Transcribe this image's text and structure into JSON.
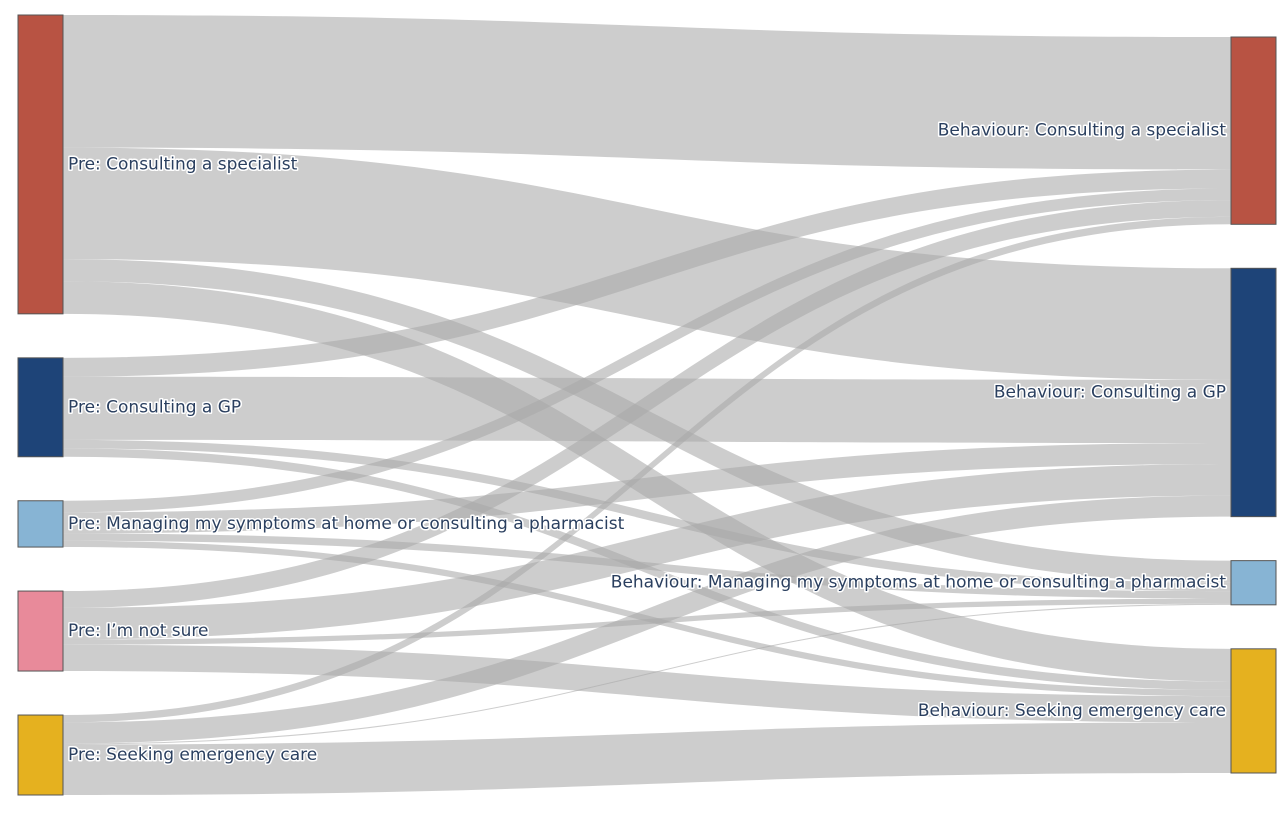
{
  "chart_data": {
    "type": "sankey",
    "sources": [
      {
        "id": "pre_specialist",
        "label": "Pre: Consulting a specialist",
        "color": "#b85343"
      },
      {
        "id": "pre_gp",
        "label": "Pre: Consulting a GP",
        "color": "#1e4478"
      },
      {
        "id": "pre_home",
        "label": "Pre: Managing my symptoms at home or consulting a pharmacist",
        "color": "#87b4d4"
      },
      {
        "id": "pre_unsure",
        "label": "Pre: I’m not sure",
        "color": "#e88a9a"
      },
      {
        "id": "pre_emergency",
        "label": "Pre: Seeking emergency care",
        "color": "#e5b11f"
      }
    ],
    "targets": [
      {
        "id": "beh_specialist",
        "label": "Behaviour: Consulting a specialist",
        "color": "#b85343"
      },
      {
        "id": "beh_gp",
        "label": "Behaviour: Consulting a GP",
        "color": "#1e4478"
      },
      {
        "id": "beh_home",
        "label": "Behaviour: Managing my symptoms at home or consulting a pharmacist",
        "color": "#87b4d4"
      },
      {
        "id": "beh_emergency",
        "label": "Behaviour: Seeking emergency care",
        "color": "#e5b11f"
      }
    ],
    "links": [
      {
        "source": "pre_specialist",
        "target": "beh_specialist",
        "value": 126
      },
      {
        "source": "pre_specialist",
        "target": "beh_gp",
        "value": 106
      },
      {
        "source": "pre_specialist",
        "target": "beh_home",
        "value": 21
      },
      {
        "source": "pre_specialist",
        "target": "beh_emergency",
        "value": 31
      },
      {
        "source": "pre_gp",
        "target": "beh_specialist",
        "value": 18
      },
      {
        "source": "pre_gp",
        "target": "beh_gp",
        "value": 60
      },
      {
        "source": "pre_gp",
        "target": "beh_home",
        "value": 8
      },
      {
        "source": "pre_gp",
        "target": "beh_emergency",
        "value": 8
      },
      {
        "source": "pre_home",
        "target": "beh_specialist",
        "value": 11
      },
      {
        "source": "pre_home",
        "target": "beh_gp",
        "value": 20
      },
      {
        "source": "pre_home",
        "target": "beh_home",
        "value": 7
      },
      {
        "source": "pre_home",
        "target": "beh_emergency",
        "value": 6
      },
      {
        "source": "pre_unsure",
        "target": "beh_specialist",
        "value": 16
      },
      {
        "source": "pre_unsure",
        "target": "beh_gp",
        "value": 30
      },
      {
        "source": "pre_unsure",
        "target": "beh_home",
        "value": 5
      },
      {
        "source": "pre_unsure",
        "target": "beh_emergency",
        "value": 25
      },
      {
        "source": "pre_emergency",
        "target": "beh_specialist",
        "value": 7
      },
      {
        "source": "pre_emergency",
        "target": "beh_gp",
        "value": 20
      },
      {
        "source": "pre_emergency",
        "target": "beh_home",
        "value": 1
      },
      {
        "source": "pre_emergency",
        "target": "beh_emergency",
        "value": 48
      }
    ]
  }
}
